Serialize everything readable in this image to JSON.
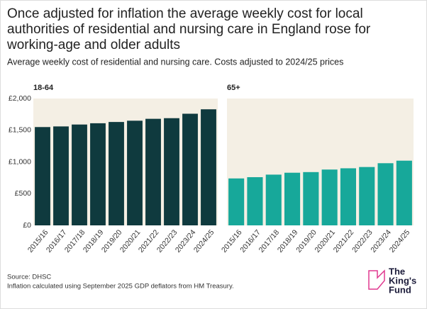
{
  "title": "Once adjusted for inflation the average weekly cost for local authorities of residential and nursing care in England rose for working-age and older adults",
  "subtitle": "Average weekly cost of residential and nursing care. Costs adjusted to 2024/25 prices",
  "source": "Source: DHSC",
  "note": "Inflation calculated using September 2025 GDP deflators from HM Treasury.",
  "logo": [
    "The",
    "King's",
    "Fund"
  ],
  "chart_data": [
    {
      "type": "bar",
      "title": "18-64",
      "categories": [
        "2015/16",
        "2016/17",
        "2017/18",
        "2018/19",
        "2019/20",
        "2020/21",
        "2021/22",
        "2022/23",
        "2023/24",
        "2024/25"
      ],
      "values": [
        1550,
        1560,
        1590,
        1610,
        1630,
        1650,
        1680,
        1690,
        1760,
        1830
      ],
      "color": "#0f3a3e",
      "ylim": [
        0,
        2000
      ],
      "yticks": [
        {
          "value": 0,
          "label": "£0"
        },
        {
          "value": 500,
          "label": "£500"
        },
        {
          "value": 1000,
          "label": "£1,000"
        },
        {
          "value": 1500,
          "label": "£1,500"
        },
        {
          "value": 2000,
          "label": "£2,000"
        }
      ]
    },
    {
      "type": "bar",
      "title": "65+",
      "categories": [
        "2015/16",
        "2016/17",
        "2017/18",
        "2018/19",
        "2019/20",
        "2020/21",
        "2021/22",
        "2022/23",
        "2023/24",
        "2024/25"
      ],
      "values": [
        740,
        760,
        800,
        830,
        840,
        880,
        900,
        920,
        980,
        1020
      ],
      "color": "#17a89a",
      "ylim": [
        0,
        2000
      ]
    }
  ]
}
